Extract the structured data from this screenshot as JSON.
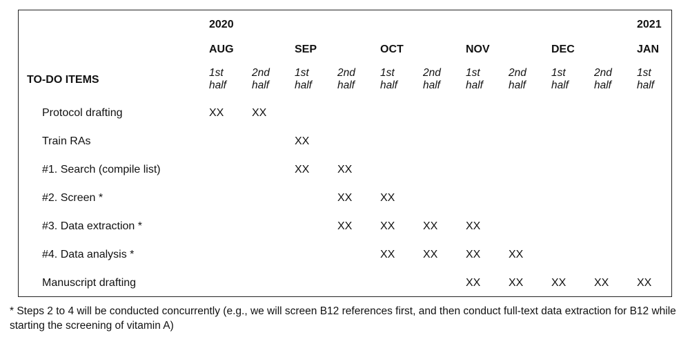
{
  "schedule": {
    "header_label": "TO-DO ITEMS",
    "years": [
      {
        "label": "2020",
        "col": 0
      },
      {
        "label": "2021",
        "col": 10
      }
    ],
    "months": [
      {
        "label": "AUG",
        "col": 0
      },
      {
        "label": "SEP",
        "col": 2
      },
      {
        "label": "OCT",
        "col": 4
      },
      {
        "label": "NOV",
        "col": 6
      },
      {
        "label": "DEC",
        "col": 8
      },
      {
        "label": "JAN",
        "col": 10
      }
    ],
    "halves": [
      {
        "top": "1st",
        "bottom": "half"
      },
      {
        "top": "2nd",
        "bottom": "half"
      },
      {
        "top": "1st",
        "bottom": "half"
      },
      {
        "top": "2nd",
        "bottom": "half"
      },
      {
        "top": "1st",
        "bottom": "half"
      },
      {
        "top": "2nd",
        "bottom": "half"
      },
      {
        "top": "1st",
        "bottom": "half"
      },
      {
        "top": "2nd",
        "bottom": "half"
      },
      {
        "top": "1st",
        "bottom": "half"
      },
      {
        "top": "2nd",
        "bottom": "half"
      },
      {
        "top": "1st",
        "bottom": "half"
      }
    ],
    "mark_text": "XX",
    "tasks": [
      {
        "label": "Protocol drafting",
        "marks": [
          0,
          1
        ]
      },
      {
        "label": "Train RAs",
        "marks": [
          2
        ]
      },
      {
        "label": "#1. Search (compile list)",
        "marks": [
          2,
          3
        ]
      },
      {
        "label": "#2. Screen *",
        "marks": [
          3,
          4
        ]
      },
      {
        "label": "#3. Data extraction *",
        "marks": [
          3,
          4,
          5,
          6
        ]
      },
      {
        "label": "#4. Data analysis *",
        "marks": [
          4,
          5,
          6,
          7
        ]
      },
      {
        "label": "Manuscript drafting",
        "marks": [
          6,
          7,
          8,
          9,
          10
        ]
      }
    ]
  },
  "footnote": "* Steps 2 to 4 will be conducted concurrently (e.g., we will screen B12 references first, and then conduct full-text data extraction for B12 while starting the screening of vitamin A)"
}
